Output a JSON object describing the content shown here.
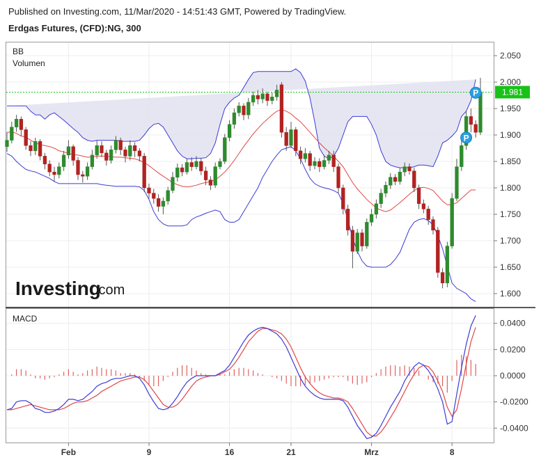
{
  "header": {
    "published": "Published on Investing.com, 11/Mar/2020 - 14:51:43 GMT, Powered by TradingView.",
    "symbol": "Erdgas Futures, (CFD):NG, 300"
  },
  "logo": {
    "main": "Investing",
    "tail": ".com"
  },
  "colors": {
    "up": "#2e8b2e",
    "down": "#b22222",
    "band_line": "#3b3bd6",
    "band_fill": "#e3e3f2",
    "basis": "#e04646",
    "macd": "#3b3bd6",
    "signal": "#e04646",
    "hist": "#e06060",
    "price_line": "#19c219",
    "marker": "#2aa0e0"
  },
  "chart_data": [
    {
      "type": "candlestick",
      "indicator_labels": [
        "BB",
        "Volumen"
      ],
      "ylim": [
        1.575,
        2.075
      ],
      "y_ticks": [
        "1.600",
        "1.650",
        "1.700",
        "1.750",
        "1.800",
        "1.850",
        "1.900",
        "1.950",
        "2.000",
        "2.050"
      ],
      "x_ticks": [
        {
          "label": "Feb",
          "index": 13
        },
        {
          "label": "9",
          "index": 30
        },
        {
          "label": "16",
          "index": 47
        },
        {
          "label": "21",
          "index": 60
        },
        {
          "label": "Mrz",
          "index": 77
        },
        {
          "label": "8",
          "index": 94
        }
      ],
      "last_price": "1.981",
      "markers": [
        {
          "label": "P",
          "index": 97,
          "price": 1.895
        },
        {
          "label": "P",
          "index": 99,
          "price": 1.98
        }
      ],
      "candles": [
        [
          1.878,
          1.89,
          1.905,
          1.868
        ],
        [
          1.89,
          1.915,
          1.925,
          1.884
        ],
        [
          1.915,
          1.93,
          1.938,
          1.906
        ],
        [
          1.93,
          1.91,
          1.935,
          1.898
        ],
        [
          1.91,
          1.88,
          1.915,
          1.872
        ],
        [
          1.88,
          1.87,
          1.888,
          1.86
        ],
        [
          1.87,
          1.888,
          1.895,
          1.862
        ],
        [
          1.888,
          1.86,
          1.892,
          1.852
        ],
        [
          1.86,
          1.845,
          1.866,
          1.835
        ],
        [
          1.845,
          1.83,
          1.852,
          1.822
        ],
        [
          1.83,
          1.825,
          1.84,
          1.812
        ],
        [
          1.825,
          1.84,
          1.848,
          1.818
        ],
        [
          1.84,
          1.862,
          1.87,
          1.832
        ],
        [
          1.862,
          1.878,
          1.89,
          1.855
        ],
        [
          1.878,
          1.852,
          1.882,
          1.842
        ],
        [
          1.852,
          1.825,
          1.858,
          1.815
        ],
        [
          1.825,
          1.822,
          1.832,
          1.81
        ],
        [
          1.822,
          1.84,
          1.848,
          1.815
        ],
        [
          1.84,
          1.862,
          1.872,
          1.835
        ],
        [
          1.862,
          1.88,
          1.89,
          1.855
        ],
        [
          1.88,
          1.866,
          1.888,
          1.858
        ],
        [
          1.866,
          1.852,
          1.872,
          1.842
        ],
        [
          1.852,
          1.872,
          1.88,
          1.846
        ],
        [
          1.872,
          1.89,
          1.898,
          1.865
        ],
        [
          1.89,
          1.872,
          1.895,
          1.862
        ],
        [
          1.872,
          1.86,
          1.878,
          1.848
        ],
        [
          1.86,
          1.88,
          1.89,
          1.852
        ],
        [
          1.88,
          1.87,
          1.886,
          1.858
        ],
        [
          1.87,
          1.86,
          1.875,
          1.85
        ],
        [
          1.86,
          1.8,
          1.866,
          1.792
        ],
        [
          1.8,
          1.79,
          1.808,
          1.78
        ],
        [
          1.79,
          1.78,
          1.798,
          1.77
        ],
        [
          1.78,
          1.765,
          1.788,
          1.755
        ],
        [
          1.765,
          1.775,
          1.782,
          1.75
        ],
        [
          1.775,
          1.795,
          1.802,
          1.768
        ],
        [
          1.795,
          1.82,
          1.83,
          1.79
        ],
        [
          1.82,
          1.838,
          1.846,
          1.812
        ],
        [
          1.838,
          1.83,
          1.845,
          1.822
        ],
        [
          1.83,
          1.848,
          1.855,
          1.825
        ],
        [
          1.848,
          1.84,
          1.858,
          1.832
        ],
        [
          1.84,
          1.85,
          1.86,
          1.835
        ],
        [
          1.85,
          1.832,
          1.856,
          1.824
        ],
        [
          1.832,
          1.815,
          1.84,
          1.805
        ],
        [
          1.815,
          1.805,
          1.822,
          1.796
        ],
        [
          1.805,
          1.84,
          1.848,
          1.8
        ],
        [
          1.84,
          1.85,
          1.856,
          1.835
        ],
        [
          1.85,
          1.895,
          1.902,
          1.845
        ],
        [
          1.895,
          1.92,
          1.928,
          1.888
        ],
        [
          1.92,
          1.942,
          1.95,
          1.912
        ],
        [
          1.942,
          1.955,
          1.962,
          1.935
        ],
        [
          1.955,
          1.938,
          1.96,
          1.928
        ],
        [
          1.938,
          1.962,
          1.97,
          1.93
        ],
        [
          1.962,
          1.975,
          1.982,
          1.955
        ],
        [
          1.975,
          1.968,
          1.985,
          1.958
        ],
        [
          1.968,
          1.978,
          1.988,
          1.96
        ],
        [
          1.978,
          1.965,
          1.982,
          1.955
        ],
        [
          1.965,
          1.972,
          1.98,
          1.958
        ],
        [
          1.972,
          1.985,
          1.995,
          1.965
        ],
        [
          1.995,
          1.905,
          2.0,
          1.895
        ],
        [
          1.905,
          1.88,
          1.915,
          1.87
        ],
        [
          1.88,
          1.91,
          1.925,
          1.875
        ],
        [
          1.91,
          1.87,
          1.915,
          1.86
        ],
        [
          1.87,
          1.855,
          1.878,
          1.845
        ],
        [
          1.855,
          1.865,
          1.875,
          1.848
        ],
        [
          1.865,
          1.842,
          1.87,
          1.832
        ],
        [
          1.842,
          1.85,
          1.858,
          1.835
        ],
        [
          1.85,
          1.84,
          1.856,
          1.83
        ],
        [
          1.84,
          1.852,
          1.862,
          1.835
        ],
        [
          1.852,
          1.862,
          1.87,
          1.845
        ],
        [
          1.862,
          1.84,
          1.87,
          1.83
        ],
        [
          1.84,
          1.8,
          1.846,
          1.79
        ],
        [
          1.8,
          1.76,
          1.806,
          1.75
        ],
        [
          1.76,
          1.72,
          1.768,
          1.71
        ],
        [
          1.72,
          1.68,
          1.728,
          1.648
        ],
        [
          1.68,
          1.715,
          1.722,
          1.675
        ],
        [
          1.715,
          1.69,
          1.722,
          1.68
        ],
        [
          1.69,
          1.735,
          1.742,
          1.685
        ],
        [
          1.735,
          1.75,
          1.76,
          1.728
        ],
        [
          1.75,
          1.77,
          1.778,
          1.742
        ],
        [
          1.77,
          1.79,
          1.798,
          1.762
        ],
        [
          1.79,
          1.805,
          1.812,
          1.782
        ],
        [
          1.805,
          1.82,
          1.828,
          1.798
        ],
        [
          1.82,
          1.812,
          1.826,
          1.805
        ],
        [
          1.812,
          1.83,
          1.838,
          1.806
        ],
        [
          1.83,
          1.84,
          1.848,
          1.822
        ],
        [
          1.84,
          1.832,
          1.846,
          1.825
        ],
        [
          1.832,
          1.8,
          1.838,
          1.792
        ],
        [
          1.8,
          1.77,
          1.806,
          1.76
        ],
        [
          1.77,
          1.76,
          1.778,
          1.752
        ],
        [
          1.76,
          1.74,
          1.766,
          1.73
        ],
        [
          1.74,
          1.72,
          1.746,
          1.712
        ],
        [
          1.72,
          1.64,
          1.726,
          1.63
        ],
        [
          1.64,
          1.62,
          1.648,
          1.61
        ],
        [
          1.62,
          1.69,
          1.698,
          1.612
        ],
        [
          1.69,
          1.78,
          1.79,
          1.685
        ],
        [
          1.78,
          1.84,
          1.855,
          1.775
        ],
        [
          1.84,
          1.88,
          1.89,
          1.832
        ],
        [
          1.88,
          1.935,
          1.945,
          1.872
        ],
        [
          1.935,
          1.92,
          1.95,
          1.905
        ],
        [
          1.92,
          1.905,
          1.928,
          1.895
        ],
        [
          1.905,
          1.981,
          2.008,
          1.9
        ]
      ],
      "bb_upper": [
        1.955,
        1.955,
        1.955,
        1.955,
        1.955,
        1.945,
        1.938,
        1.938,
        1.93,
        1.938,
        1.942,
        1.935,
        1.928,
        1.92,
        1.912,
        1.905,
        1.895,
        1.89,
        1.888,
        1.89,
        1.89,
        1.89,
        1.89,
        1.89,
        1.888,
        1.888,
        1.888,
        1.888,
        1.89,
        1.9,
        1.912,
        1.92,
        1.922,
        1.915,
        1.9,
        1.885,
        1.87,
        1.86,
        1.855,
        1.855,
        1.856,
        1.856,
        1.857,
        1.865,
        1.885,
        1.92,
        1.95,
        1.962,
        1.97,
        1.975,
        1.99,
        2.005,
        2.018,
        2.02,
        2.02,
        2.02,
        2.02,
        2.02,
        2.02,
        2.02,
        2.02,
        2.025,
        2.018,
        2.002,
        1.97,
        1.925,
        1.875,
        1.86,
        1.855,
        1.86,
        1.875,
        1.9,
        1.925,
        1.935,
        1.935,
        1.935,
        1.935,
        1.92,
        1.9,
        1.87,
        1.85,
        1.843,
        1.84,
        1.838,
        1.838,
        1.838,
        1.84,
        1.843,
        1.843,
        1.842,
        1.84,
        1.86,
        1.885,
        1.89,
        1.898,
        1.908,
        1.935,
        1.945,
        1.965,
        2.005
      ],
      "bb_basis": [
        1.905,
        1.906,
        1.903,
        1.898,
        1.896,
        1.89,
        1.885,
        1.882,
        1.88,
        1.878,
        1.875,
        1.87,
        1.868,
        1.865,
        1.863,
        1.862,
        1.86,
        1.858,
        1.858,
        1.86,
        1.86,
        1.86,
        1.859,
        1.858,
        1.858,
        1.857,
        1.856,
        1.855,
        1.852,
        1.848,
        1.842,
        1.835,
        1.828,
        1.822,
        1.816,
        1.81,
        1.806,
        1.803,
        1.802,
        1.803,
        1.805,
        1.808,
        1.81,
        1.812,
        1.815,
        1.822,
        1.83,
        1.84,
        1.852,
        1.865,
        1.878,
        1.89,
        1.902,
        1.912,
        1.922,
        1.93,
        1.938,
        1.945,
        1.948,
        1.945,
        1.94,
        1.932,
        1.925,
        1.915,
        1.905,
        1.895,
        1.885,
        1.876,
        1.868,
        1.86,
        1.85,
        1.84,
        1.825,
        1.81,
        1.798,
        1.788,
        1.778,
        1.77,
        1.762,
        1.758,
        1.755,
        1.758,
        1.765,
        1.772,
        1.78,
        1.788,
        1.795,
        1.8,
        1.801,
        1.799,
        1.795,
        1.785,
        1.775,
        1.768,
        1.768,
        1.772,
        1.78,
        1.788,
        1.796,
        1.796
      ],
      "bb_lower": [
        1.865,
        1.86,
        1.85,
        1.842,
        1.835,
        1.832,
        1.83,
        1.826,
        1.822,
        1.818,
        1.812,
        1.808,
        1.808,
        1.808,
        1.808,
        1.808,
        1.808,
        1.808,
        1.808,
        1.808,
        1.806,
        1.805,
        1.804,
        1.803,
        1.803,
        1.803,
        1.803,
        1.803,
        1.802,
        1.795,
        1.778,
        1.755,
        1.74,
        1.732,
        1.728,
        1.728,
        1.728,
        1.728,
        1.73,
        1.74,
        1.745,
        1.748,
        1.752,
        1.755,
        1.758,
        1.755,
        1.74,
        1.735,
        1.735,
        1.74,
        1.755,
        1.77,
        1.785,
        1.8,
        1.82,
        1.835,
        1.85,
        1.862,
        1.872,
        1.875,
        1.878,
        1.87,
        1.855,
        1.835,
        1.818,
        1.808,
        1.803,
        1.8,
        1.798,
        1.795,
        1.79,
        1.77,
        1.74,
        1.705,
        1.68,
        1.662,
        1.652,
        1.65,
        1.65,
        1.65,
        1.65,
        1.655,
        1.665,
        1.678,
        1.7,
        1.722,
        1.735,
        1.74,
        1.742,
        1.738,
        1.73,
        1.71,
        1.685,
        1.652,
        1.62,
        1.61,
        1.605,
        1.6,
        1.59,
        1.585
      ]
    },
    {
      "type": "line",
      "title": "MACD",
      "ylim": [
        -0.051,
        0.051
      ],
      "y_ticks": [
        "-0.0400",
        "-0.0200",
        "0.0000",
        "0.0200",
        "0.0400"
      ],
      "macd": [
        -0.026,
        -0.025,
        -0.02,
        -0.019,
        -0.019,
        -0.021,
        -0.025,
        -0.026,
        -0.028,
        -0.028,
        -0.027,
        -0.025,
        -0.022,
        -0.018,
        -0.018,
        -0.019,
        -0.018,
        -0.015,
        -0.012,
        -0.008,
        -0.006,
        -0.005,
        -0.003,
        -0.002,
        -0.002,
        -0.001,
        0.0,
        0.0,
        -0.002,
        -0.007,
        -0.014,
        -0.02,
        -0.025,
        -0.026,
        -0.025,
        -0.021,
        -0.016,
        -0.01,
        -0.005,
        -0.002,
        0.0,
        0.0,
        0.0,
        0.0,
        0.0,
        0.002,
        0.004,
        0.008,
        0.014,
        0.02,
        0.026,
        0.031,
        0.034,
        0.036,
        0.037,
        0.036,
        0.034,
        0.032,
        0.028,
        0.022,
        0.014,
        0.006,
        -0.002,
        -0.008,
        -0.012,
        -0.015,
        -0.017,
        -0.018,
        -0.018,
        -0.018,
        -0.018,
        -0.019,
        -0.024,
        -0.031,
        -0.038,
        -0.043,
        -0.048,
        -0.047,
        -0.044,
        -0.038,
        -0.031,
        -0.024,
        -0.018,
        -0.012,
        -0.004,
        0.002,
        0.007,
        0.01,
        0.008,
        0.004,
        -0.002,
        -0.01,
        -0.02,
        -0.037,
        -0.035,
        -0.014,
        0.006,
        0.024,
        0.038,
        0.046
      ],
      "signal": [
        -0.026,
        -0.026,
        -0.025,
        -0.024,
        -0.023,
        -0.022,
        -0.023,
        -0.024,
        -0.025,
        -0.026,
        -0.026,
        -0.026,
        -0.025,
        -0.023,
        -0.021,
        -0.02,
        -0.02,
        -0.019,
        -0.017,
        -0.015,
        -0.012,
        -0.01,
        -0.008,
        -0.006,
        -0.004,
        -0.003,
        -0.002,
        -0.001,
        -0.001,
        -0.003,
        -0.007,
        -0.012,
        -0.017,
        -0.022,
        -0.024,
        -0.024,
        -0.022,
        -0.018,
        -0.013,
        -0.008,
        -0.004,
        -0.002,
        -0.001,
        0.0,
        0.0,
        0.001,
        0.003,
        0.005,
        0.009,
        0.014,
        0.02,
        0.026,
        0.03,
        0.034,
        0.036,
        0.036,
        0.035,
        0.034,
        0.032,
        0.028,
        0.022,
        0.014,
        0.006,
        -0.001,
        -0.006,
        -0.01,
        -0.013,
        -0.015,
        -0.016,
        -0.017,
        -0.017,
        -0.018,
        -0.02,
        -0.025,
        -0.031,
        -0.037,
        -0.043,
        -0.046,
        -0.046,
        -0.043,
        -0.038,
        -0.032,
        -0.026,
        -0.019,
        -0.012,
        -0.005,
        0.001,
        0.006,
        0.008,
        0.007,
        0.003,
        -0.004,
        -0.012,
        -0.024,
        -0.031,
        -0.026,
        -0.01,
        0.009,
        0.026,
        0.037
      ],
      "histogram": [
        0.0,
        0.001,
        0.005,
        0.005,
        0.004,
        0.001,
        -0.002,
        -0.002,
        -0.003,
        -0.002,
        -0.001,
        0.001,
        0.003,
        0.005,
        0.003,
        0.001,
        0.002,
        0.004,
        0.005,
        0.007,
        0.006,
        0.005,
        0.005,
        0.004,
        0.002,
        0.002,
        0.002,
        0.001,
        -0.001,
        -0.004,
        -0.007,
        -0.008,
        -0.008,
        -0.004,
        -0.001,
        0.003,
        0.006,
        0.008,
        0.008,
        0.006,
        0.004,
        0.002,
        0.001,
        0.0,
        0.0,
        0.001,
        0.001,
        0.003,
        0.005,
        0.006,
        0.006,
        0.005,
        0.004,
        0.002,
        0.001,
        0.0,
        -0.001,
        -0.002,
        -0.004,
        -0.006,
        -0.008,
        -0.008,
        -0.008,
        -0.007,
        -0.006,
        -0.005,
        -0.004,
        -0.003,
        -0.002,
        -0.001,
        -0.001,
        -0.001,
        -0.004,
        -0.006,
        -0.007,
        -0.006,
        -0.005,
        -0.001,
        0.002,
        0.005,
        0.007,
        0.008,
        0.008,
        0.007,
        0.008,
        0.007,
        0.006,
        0.004,
        0.0,
        -0.003,
        -0.005,
        -0.006,
        -0.008,
        -0.013,
        -0.004,
        0.012,
        0.016,
        0.015,
        0.012,
        0.009
      ]
    }
  ]
}
